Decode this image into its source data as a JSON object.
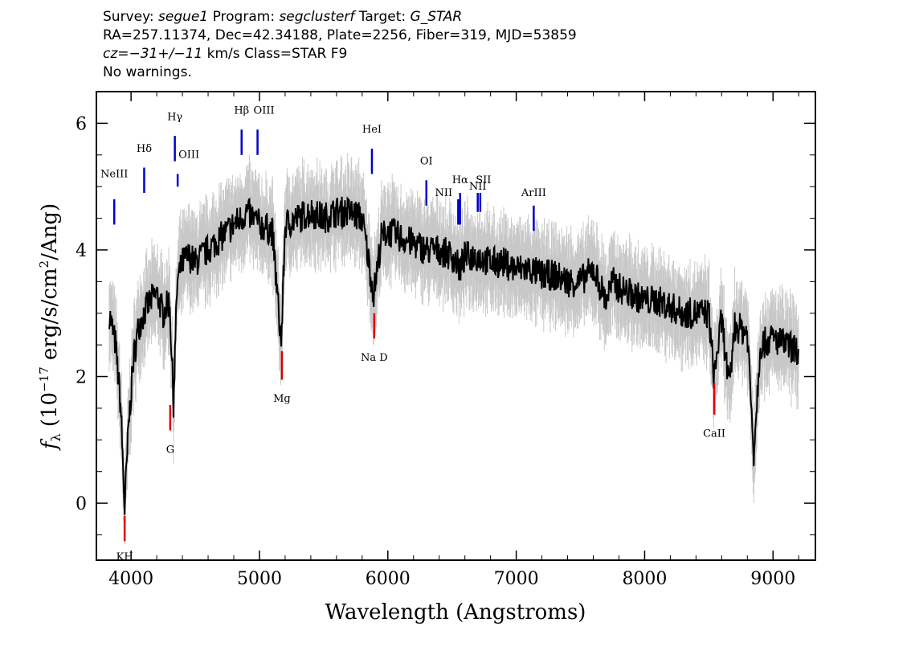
{
  "header": {
    "line1": {
      "survey_label": "Survey: ",
      "survey": "segue1",
      "program_label": " Program: ",
      "program": "segclusterf",
      "target_label": " Target: ",
      "target": "G_STAR"
    },
    "line2": "RA=257.11374, Dec=42.34188, Plate=2256, Fiber=319, MJD=53859",
    "line3": {
      "cz_label": "cz=",
      "cz_value": "−31+/−11",
      "cz_rest": " km/s Class=STAR F9"
    },
    "line4": "No warnings."
  },
  "chart_data": {
    "type": "line",
    "xlabel": "Wavelength (Angstroms)",
    "ylabel_main": "f",
    "ylabel_sub": "λ",
    "ylabel_units_prefix": " (10",
    "ylabel_exponent": "−17",
    "ylabel_units_mid": " erg/s/cm",
    "ylabel_exponent2": "2",
    "ylabel_units_suffix": "/Ang)",
    "xlim": [
      3730,
      9330
    ],
    "ylim": [
      -0.9,
      6.5
    ],
    "x_ticks": [
      4000,
      5000,
      6000,
      7000,
      8000,
      9000
    ],
    "y_ticks": [
      0,
      2,
      4,
      6
    ],
    "colors": {
      "flux": "#000000",
      "error": "#c8c8c8",
      "emission": "#0000cc",
      "absorption": "#dd0000"
    },
    "series": [
      {
        "name": "flux",
        "x": [
          3830,
          3880,
          3920,
          3950,
          3980,
          4020,
          4060,
          4100,
          4150,
          4200,
          4250,
          4300,
          4330,
          4360,
          4400,
          4450,
          4500,
          4600,
          4700,
          4800,
          4860,
          4900,
          5000,
          5100,
          5170,
          5200,
          5300,
          5400,
          5500,
          5600,
          5700,
          5800,
          5890,
          5950,
          6000,
          6100,
          6200,
          6300,
          6400,
          6500,
          6563,
          6600,
          6700,
          6800,
          6900,
          7000,
          7100,
          7200,
          7300,
          7400,
          7500,
          7600,
          7700,
          7750,
          7800,
          7900,
          8000,
          8100,
          8200,
          8300,
          8400,
          8500,
          8540,
          8600,
          8660,
          8700,
          8800,
          8850,
          8900,
          9000,
          9100,
          9200
        ],
        "y": [
          3.0,
          2.5,
          1.5,
          -0.1,
          1.2,
          2.3,
          2.8,
          3.0,
          3.2,
          3.3,
          3.0,
          3.2,
          1.6,
          3.5,
          3.8,
          3.9,
          3.8,
          4.0,
          4.2,
          4.4,
          4.5,
          4.6,
          4.4,
          4.3,
          2.5,
          4.4,
          4.5,
          4.6,
          4.5,
          4.6,
          4.6,
          4.5,
          3.3,
          4.2,
          4.3,
          4.2,
          4.1,
          4.0,
          4.0,
          3.9,
          3.7,
          3.9,
          3.9,
          3.8,
          3.8,
          3.7,
          3.7,
          3.6,
          3.6,
          3.5,
          3.5,
          3.7,
          3.2,
          3.5,
          3.4,
          3.3,
          3.2,
          3.2,
          3.1,
          3.0,
          3.0,
          3.0,
          2.0,
          2.9,
          1.8,
          2.8,
          2.7,
          0.8,
          2.5,
          2.6,
          2.5,
          2.4
        ]
      }
    ],
    "lines": [
      {
        "label": "NeIII",
        "x": 3869,
        "kind": "emission"
      },
      {
        "label": "Hδ",
        "x": 4102,
        "kind": "emission"
      },
      {
        "label": "Hγ",
        "x": 4341,
        "kind": "emission"
      },
      {
        "label": "OIII",
        "x": 4363,
        "kind": "emission"
      },
      {
        "label": "Hβ",
        "x": 4861,
        "kind": "emission"
      },
      {
        "label": "OIII",
        "x": 4985,
        "kind": "emission"
      },
      {
        "label": "HeI",
        "x": 5876,
        "kind": "emission"
      },
      {
        "label": "OI",
        "x": 6300,
        "kind": "emission"
      },
      {
        "label": "NII",
        "x": 6548,
        "kind": "emission"
      },
      {
        "label": "Hα",
        "x": 6563,
        "kind": "emission"
      },
      {
        "label": "SII",
        "x": 6720,
        "kind": "emission"
      },
      {
        "label": "NII",
        "x": 6700,
        "kind": "emission"
      },
      {
        "label": "ArIII",
        "x": 7136,
        "kind": "emission"
      },
      {
        "label": "KH",
        "x": 3950,
        "kind": "absorption"
      },
      {
        "label": "G",
        "x": 4305,
        "kind": "absorption"
      },
      {
        "label": "Mg",
        "x": 5175,
        "kind": "absorption"
      },
      {
        "label": "Na D",
        "x": 5894,
        "kind": "absorption"
      },
      {
        "label": "CaII",
        "x": 8542,
        "kind": "absorption"
      }
    ]
  }
}
